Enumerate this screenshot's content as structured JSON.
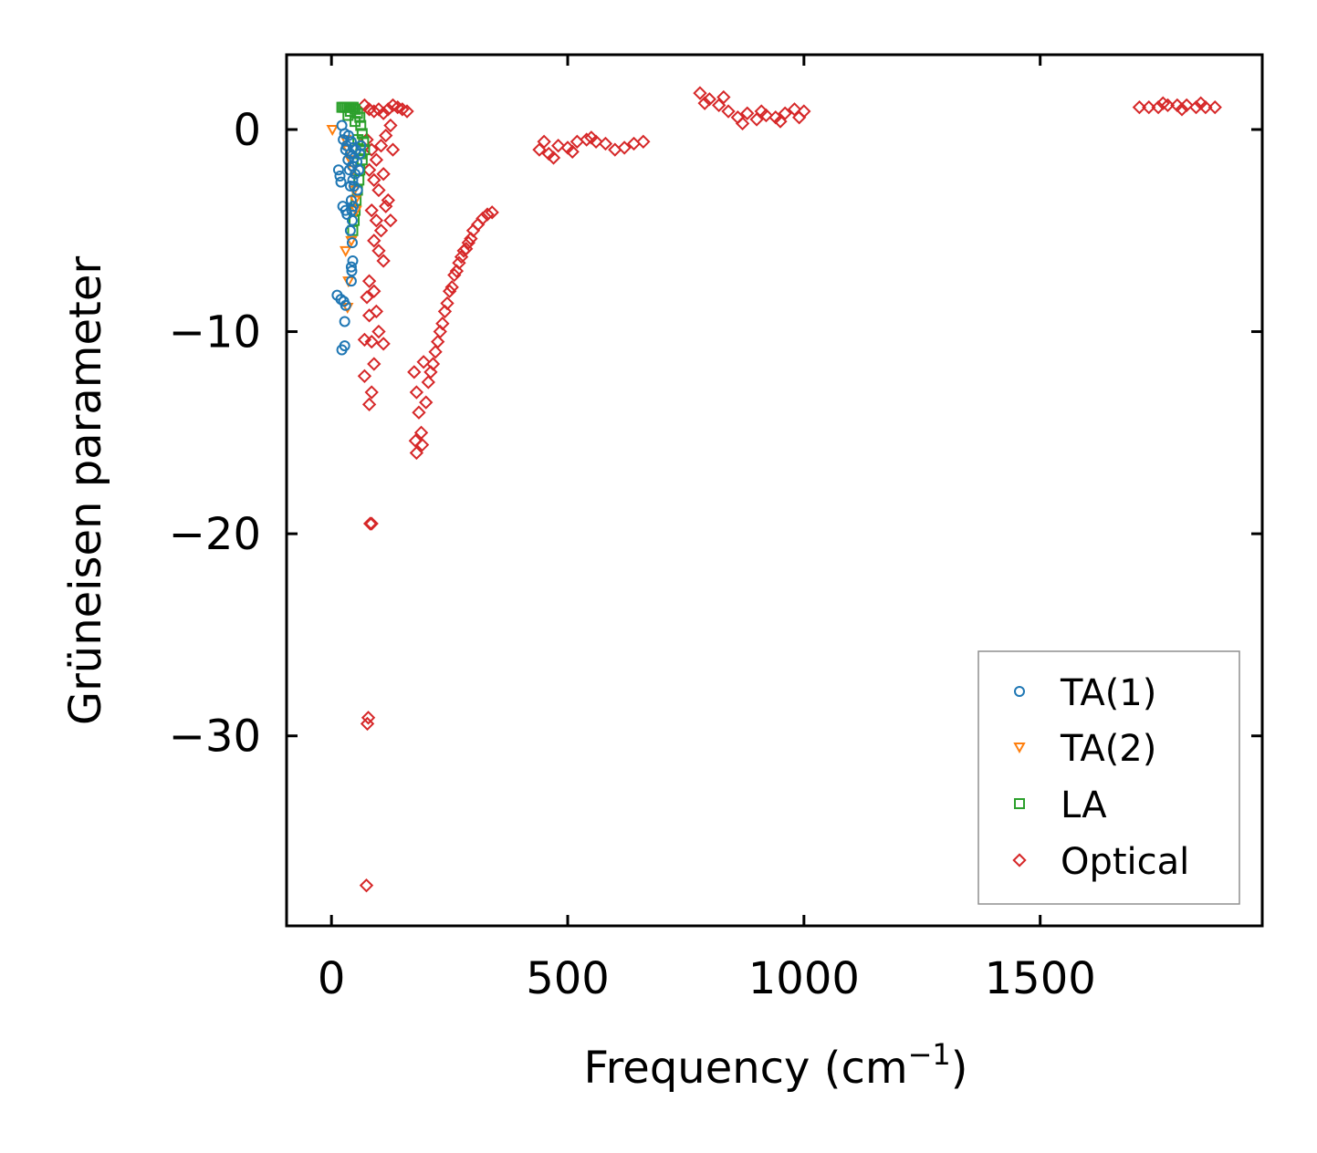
{
  "chart_data": {
    "type": "scatter",
    "title": "",
    "xlabel": "Frequency (cm",
    "xlabel_sup": "−1",
    "xlabel_end": ")",
    "ylabel": "Grüneisen parameter",
    "xlim": [
      -95,
      1970
    ],
    "ylim": [
      -39.4,
      3.7
    ],
    "xticks": [
      0,
      500,
      1000,
      1500
    ],
    "xtick_labels": [
      "0",
      "500",
      "1000",
      "1500"
    ],
    "yticks": [
      0,
      -10,
      -20,
      -30
    ],
    "ytick_labels": [
      "0",
      "−10",
      "−20",
      "−30"
    ],
    "grid": false,
    "legend_position": "lower-right",
    "series": [
      {
        "name": "TA(1)",
        "marker": "circle",
        "color": "#1f77b4",
        "points": [
          [
            22,
            0.2
          ],
          [
            25,
            -0.5
          ],
          [
            28,
            -0.2
          ],
          [
            30,
            -1.0
          ],
          [
            32,
            -0.8
          ],
          [
            35,
            -1.5
          ],
          [
            36,
            -0.3
          ],
          [
            38,
            -2.0
          ],
          [
            40,
            -1.2
          ],
          [
            42,
            -0.6
          ],
          [
            44,
            -1.8
          ],
          [
            45,
            -2.5
          ],
          [
            46,
            -0.9
          ],
          [
            48,
            -1.4
          ],
          [
            50,
            -2.2
          ],
          [
            52,
            -1.0
          ],
          [
            54,
            -1.6
          ],
          [
            55,
            -3.0
          ],
          [
            58,
            -2.0
          ],
          [
            60,
            -1.2
          ],
          [
            62,
            -0.8
          ],
          [
            40,
            -2.8
          ],
          [
            42,
            -3.5
          ],
          [
            43,
            -4.0
          ],
          [
            44,
            -4.5
          ],
          [
            46,
            -3.8
          ],
          [
            48,
            -2.8
          ],
          [
            15,
            -2.0
          ],
          [
            18,
            -2.3
          ],
          [
            20,
            -2.6
          ],
          [
            24,
            -3.8
          ],
          [
            30,
            -4.0
          ],
          [
            33,
            -4.2
          ],
          [
            40,
            -5.0
          ],
          [
            44,
            -5.6
          ],
          [
            45,
            -6.5
          ],
          [
            42,
            -6.8
          ],
          [
            43,
            -7.0
          ],
          [
            42,
            -7.5
          ],
          [
            12,
            -8.2
          ],
          [
            20,
            -8.4
          ],
          [
            26,
            -8.5
          ],
          [
            30,
            -8.7
          ],
          [
            28,
            -9.5
          ],
          [
            28,
            -10.7
          ],
          [
            22,
            -10.9
          ]
        ]
      },
      {
        "name": "TA(2)",
        "marker": "triangle-down",
        "color": "#ff7f0e",
        "points": [
          [
            2,
            0.0
          ],
          [
            30,
            -0.5
          ],
          [
            35,
            -1.0
          ],
          [
            40,
            -1.5
          ],
          [
            45,
            -2.0
          ],
          [
            48,
            -3.0
          ],
          [
            50,
            -3.5
          ],
          [
            52,
            -4.0
          ],
          [
            42,
            -5.5
          ],
          [
            30,
            -6.0
          ],
          [
            36,
            -7.5
          ],
          [
            34,
            -8.8
          ]
        ]
      },
      {
        "name": "LA",
        "marker": "square",
        "color": "#2ca02c",
        "points": [
          [
            22,
            1.1
          ],
          [
            26,
            1.1
          ],
          [
            30,
            1.1
          ],
          [
            34,
            1.1
          ],
          [
            38,
            1.1
          ],
          [
            42,
            1.1
          ],
          [
            46,
            1.1
          ],
          [
            50,
            1.0
          ],
          [
            55,
            0.8
          ],
          [
            60,
            0.6
          ],
          [
            62,
            0.2
          ],
          [
            65,
            -0.2
          ],
          [
            68,
            -0.6
          ],
          [
            70,
            -1.0
          ],
          [
            65,
            -1.5
          ],
          [
            60,
            -2.0
          ],
          [
            58,
            -2.5
          ],
          [
            55,
            -3.0
          ],
          [
            52,
            -3.5
          ],
          [
            50,
            -4.0
          ],
          [
            48,
            -4.5
          ],
          [
            45,
            -5.0
          ],
          [
            50,
            0.4
          ],
          [
            56,
            -0.5
          ],
          [
            62,
            -1.2
          ],
          [
            40,
            0.9
          ],
          [
            35,
            0.7
          ]
        ]
      },
      {
        "name": "Optical",
        "marker": "diamond",
        "color": "#d62728",
        "points": [
          [
            70,
            1.2
          ],
          [
            80,
            1.0
          ],
          [
            90,
            0.9
          ],
          [
            100,
            1.0
          ],
          [
            110,
            0.8
          ],
          [
            120,
            1.0
          ],
          [
            130,
            1.2
          ],
          [
            140,
            1.1
          ],
          [
            150,
            1.0
          ],
          [
            160,
            0.9
          ],
          [
            75,
            -0.5
          ],
          [
            85,
            -1.0
          ],
          [
            95,
            -1.5
          ],
          [
            105,
            -0.8
          ],
          [
            115,
            -0.3
          ],
          [
            125,
            0.2
          ],
          [
            80,
            -2.0
          ],
          [
            90,
            -2.5
          ],
          [
            100,
            -3.0
          ],
          [
            110,
            -2.2
          ],
          [
            120,
            -3.5
          ],
          [
            130,
            -1.0
          ],
          [
            85,
            -4.0
          ],
          [
            95,
            -4.5
          ],
          [
            105,
            -5.0
          ],
          [
            115,
            -3.8
          ],
          [
            125,
            -4.5
          ],
          [
            90,
            -5.5
          ],
          [
            100,
            -6.0
          ],
          [
            110,
            -6.5
          ],
          [
            80,
            -7.5
          ],
          [
            90,
            -8.0
          ],
          [
            75,
            -8.3
          ],
          [
            80,
            -9.2
          ],
          [
            95,
            -9.0
          ],
          [
            100,
            -10.0
          ],
          [
            85,
            -10.5
          ],
          [
            110,
            -10.6
          ],
          [
            70,
            -10.4
          ],
          [
            90,
            -11.6
          ],
          [
            70,
            -12.2
          ],
          [
            85,
            -13.0
          ],
          [
            80,
            -13.6
          ],
          [
            82,
            -19.5
          ],
          [
            85,
            -19.5
          ],
          [
            78,
            -29.1
          ],
          [
            76,
            -29.4
          ],
          [
            74,
            -37.4
          ],
          [
            175,
            -12.0
          ],
          [
            180,
            -13.0
          ],
          [
            185,
            -14.0
          ],
          [
            190,
            -15.0
          ],
          [
            192,
            -15.6
          ],
          [
            180,
            -16.0
          ],
          [
            178,
            -15.4
          ],
          [
            200,
            -13.5
          ],
          [
            210,
            -12.0
          ],
          [
            220,
            -11.0
          ],
          [
            230,
            -10.0
          ],
          [
            240,
            -9.0
          ],
          [
            250,
            -8.0
          ],
          [
            260,
            -7.2
          ],
          [
            270,
            -6.6
          ],
          [
            280,
            -6.0
          ],
          [
            290,
            -5.6
          ],
          [
            300,
            -5.0
          ],
          [
            310,
            -4.7
          ],
          [
            320,
            -4.4
          ],
          [
            330,
            -4.2
          ],
          [
            340,
            -4.1
          ],
          [
            195,
            -11.5
          ],
          [
            205,
            -12.5
          ],
          [
            215,
            -11.6
          ],
          [
            225,
            -10.5
          ],
          [
            235,
            -9.6
          ],
          [
            245,
            -8.6
          ],
          [
            255,
            -7.8
          ],
          [
            265,
            -7.0
          ],
          [
            275,
            -6.3
          ],
          [
            285,
            -5.9
          ],
          [
            295,
            -5.4
          ],
          [
            440,
            -1.0
          ],
          [
            460,
            -1.2
          ],
          [
            480,
            -0.8
          ],
          [
            500,
            -0.9
          ],
          [
            520,
            -0.6
          ],
          [
            540,
            -0.5
          ],
          [
            560,
            -0.6
          ],
          [
            580,
            -0.7
          ],
          [
            600,
            -1.0
          ],
          [
            620,
            -0.9
          ],
          [
            640,
            -0.7
          ],
          [
            660,
            -0.6
          ],
          [
            450,
            -0.6
          ],
          [
            470,
            -1.4
          ],
          [
            510,
            -1.1
          ],
          [
            550,
            -0.4
          ],
          [
            780,
            1.8
          ],
          [
            800,
            1.5
          ],
          [
            820,
            1.2
          ],
          [
            840,
            0.9
          ],
          [
            860,
            0.6
          ],
          [
            880,
            0.8
          ],
          [
            900,
            0.5
          ],
          [
            920,
            0.7
          ],
          [
            940,
            0.6
          ],
          [
            960,
            0.8
          ],
          [
            980,
            1.0
          ],
          [
            1000,
            0.9
          ],
          [
            790,
            1.3
          ],
          [
            830,
            1.6
          ],
          [
            870,
            0.3
          ],
          [
            910,
            0.9
          ],
          [
            950,
            0.4
          ],
          [
            990,
            0.6
          ],
          [
            1710,
            1.1
          ],
          [
            1730,
            1.1
          ],
          [
            1750,
            1.1
          ],
          [
            1770,
            1.2
          ],
          [
            1790,
            1.2
          ],
          [
            1810,
            1.2
          ],
          [
            1830,
            1.1
          ],
          [
            1850,
            1.1
          ],
          [
            1870,
            1.1
          ],
          [
            1760,
            1.3
          ],
          [
            1800,
            1.0
          ],
          [
            1840,
            1.3
          ]
        ]
      }
    ]
  }
}
